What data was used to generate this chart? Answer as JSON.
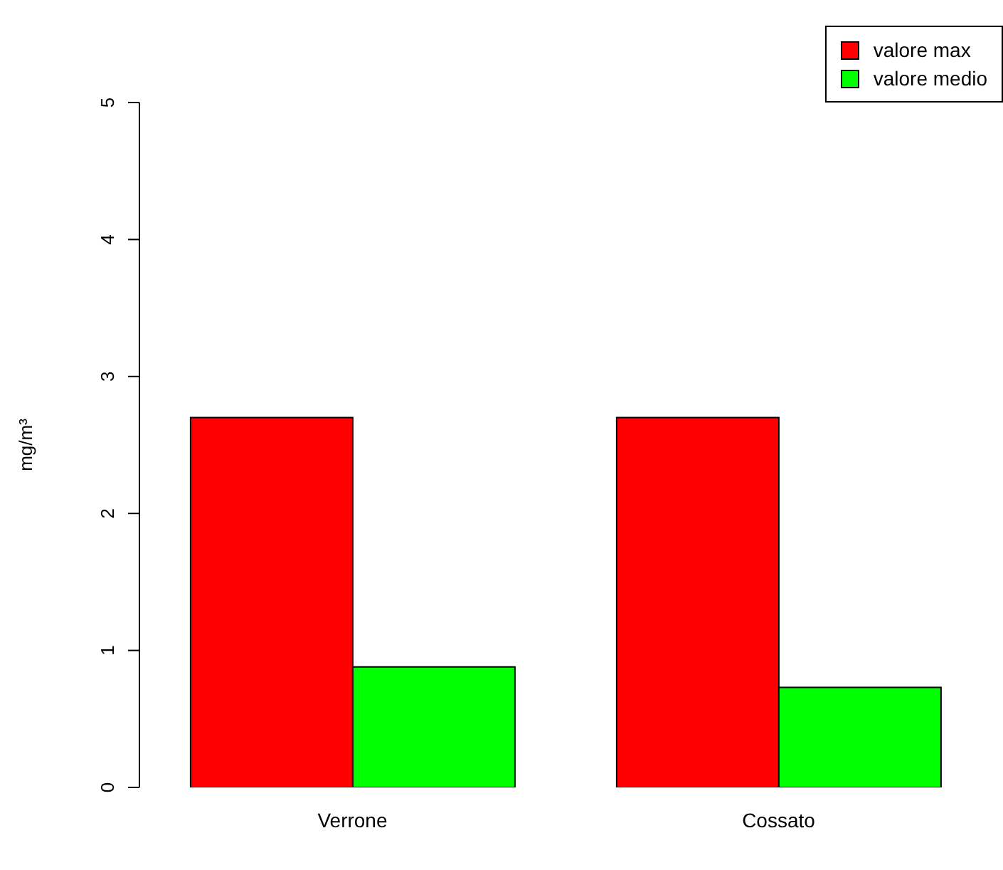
{
  "chart_data": {
    "type": "bar",
    "ylabel": "mg/m³",
    "categories": [
      "Verrone",
      "Cossato"
    ],
    "series": [
      {
        "name": "valore max",
        "color": "#ff0000",
        "values": [
          2.7,
          2.7
        ]
      },
      {
        "name": "valore medio",
        "color": "#00ff00",
        "values": [
          0.88,
          0.73
        ]
      }
    ],
    "ylim": [
      0,
      5
    ],
    "yticks": [
      0,
      1,
      2,
      3,
      4,
      5
    ],
    "grid": false,
    "legend": "top right"
  }
}
